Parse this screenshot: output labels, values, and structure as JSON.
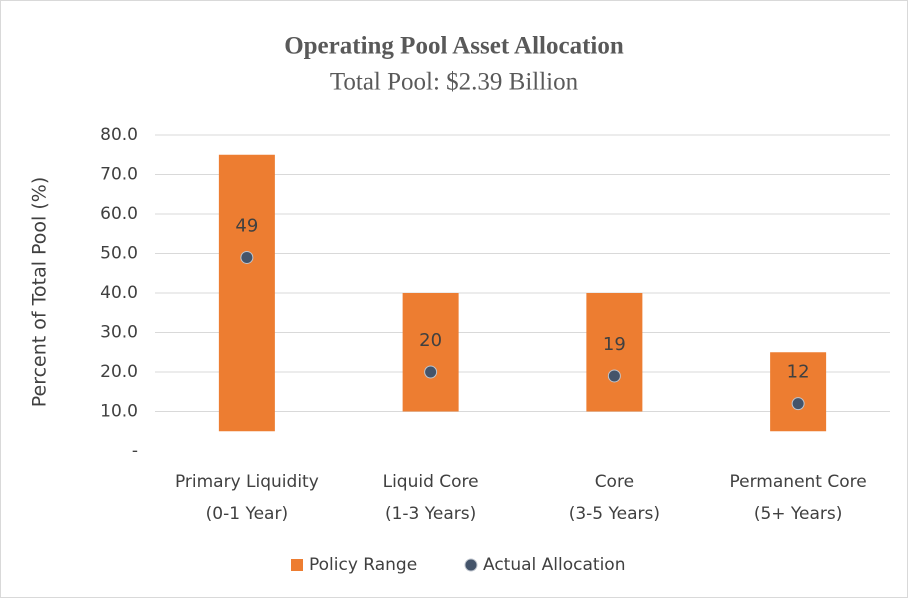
{
  "chart_data": {
    "type": "range-dot",
    "title": "Operating Pool Asset Allocation",
    "subtitle": "Total Pool: $2.39 Billion",
    "y_label": "Percent of Total Pool (%)",
    "categories": [
      [
        "Primary Liquidity",
        "(0-1 Year)"
      ],
      [
        "Liquid Core",
        "(1-3 Years)"
      ],
      [
        "Core",
        "(3-5 Years)"
      ],
      [
        "Permanent Core",
        "(5+ Years)"
      ]
    ],
    "series": [
      {
        "name": "Policy Range",
        "color": "#ed7d31",
        "low": [
          5,
          10,
          10,
          5
        ],
        "high": [
          75,
          40,
          40,
          25
        ]
      },
      {
        "name": "Actual Allocation",
        "color": "#44546a",
        "values": [
          49,
          20,
          19,
          12
        ]
      }
    ],
    "ylim": [
      0,
      80
    ],
    "yticks": [
      {
        "value": 0,
        "label": "-"
      },
      {
        "value": 10,
        "label": "10.0"
      },
      {
        "value": 20,
        "label": "20.0"
      },
      {
        "value": 30,
        "label": "30.0"
      },
      {
        "value": 40,
        "label": "40.0"
      },
      {
        "value": 50,
        "label": "50.0"
      },
      {
        "value": 60,
        "label": "60.0"
      },
      {
        "value": 70,
        "label": "70.0"
      },
      {
        "value": 80,
        "label": "80.0"
      }
    ],
    "grid": true,
    "legend": "bottom"
  }
}
